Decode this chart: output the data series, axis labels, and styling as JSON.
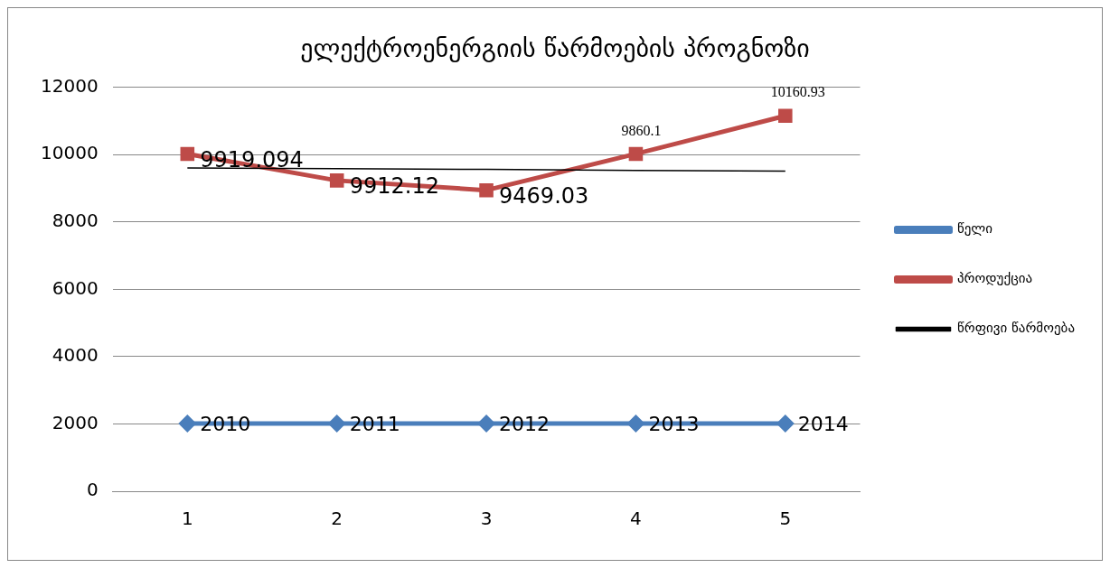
{
  "chart_data": {
    "type": "line",
    "title": "ელექტროენერგიის წარმოების პროგნოზი",
    "categories": [
      "1",
      "2",
      "3",
      "4",
      "5"
    ],
    "series": [
      {
        "name": "წელი",
        "color": "#4a7ebb",
        "values": [
          2010,
          2011,
          2012,
          2013,
          2014
        ],
        "value_labels": [
          "2010",
          "2011",
          "2012",
          "2013",
          "2014"
        ],
        "marker": "diamond"
      },
      {
        "name": "პროდუქცია",
        "color": "#be4b48",
        "values": [
          10020,
          9230,
          8940,
          10020,
          11150
        ],
        "marker": "square"
      },
      {
        "name": "წრფივი წარმოება",
        "color": "#000000",
        "values": [
          9600,
          9580,
          9560,
          9530,
          9510
        ],
        "marker": "none"
      }
    ],
    "annotations": [
      {
        "text": "9919.094",
        "x": "1",
        "y": 10020
      },
      {
        "text": "9912.12",
        "x": "2",
        "y": 9230
      },
      {
        "text": "9469.03",
        "x": "3",
        "y": 8940
      },
      {
        "text": "9860.1",
        "x": "4",
        "y": 10020
      },
      {
        "text": "10160.93",
        "x": "5",
        "y": 11150
      }
    ],
    "ylim": [
      0,
      12000
    ],
    "yticks": [
      0,
      2000,
      4000,
      6000,
      8000,
      10000,
      12000
    ],
    "grid": "y",
    "legend": "right"
  }
}
